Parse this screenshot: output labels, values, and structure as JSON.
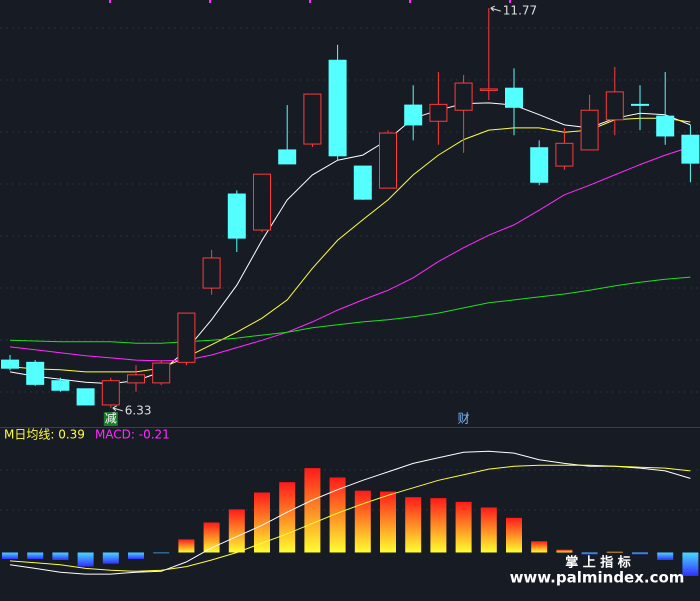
{
  "chart_data": [
    {
      "type": "candlestick",
      "up_color": "#ff3b3b",
      "down_color": "#54ffff",
      "open": [
        6.98,
        6.95,
        6.7,
        6.59,
        6.37,
        6.67,
        6.67,
        6.95,
        7.96,
        9.24,
        8.75,
        9.84,
        9.92,
        11.06,
        9.62,
        9.32,
        10.45,
        10.23,
        10.38,
        10.65,
        10.68,
        9.87,
        9.62,
        9.84,
        10.25,
        10.46,
        10.3,
        10.04
      ],
      "high": [
        7.05,
        6.98,
        6.74,
        6.59,
        6.74,
        6.91,
        6.98,
        7.62,
        8.48,
        9.29,
        9.51,
        10.45,
        10.6,
        11.27,
        9.62,
        10.11,
        10.72,
        10.9,
        10.86,
        11.77,
        10.95,
        9.97,
        10.14,
        10.59,
        10.97,
        10.72,
        10.9,
        10.18
      ],
      "low": [
        6.84,
        6.63,
        6.55,
        6.37,
        6.33,
        6.55,
        6.64,
        6.91,
        7.87,
        8.45,
        8.72,
        9.65,
        9.88,
        9.7,
        9.16,
        9.32,
        9.97,
        9.91,
        9.8,
        10.52,
        10.04,
        9.36,
        9.57,
        9.84,
        10.04,
        10.11,
        9.91,
        9.4
      ],
      "close": [
        6.87,
        6.65,
        6.57,
        6.37,
        6.7,
        6.78,
        6.94,
        7.62,
        8.37,
        8.64,
        9.51,
        9.65,
        10.6,
        9.76,
        9.17,
        10.07,
        10.18,
        10.46,
        10.75,
        10.67,
        10.42,
        9.4,
        9.93,
        10.38,
        10.63,
        10.45,
        10.03,
        9.66
      ],
      "lines": [
        {
          "color": "#ffffff",
          "values": [
            6.82,
            6.76,
            6.72,
            6.68,
            6.66,
            6.7,
            6.82,
            7.12,
            7.53,
            8.0,
            8.61,
            9.16,
            9.5,
            9.7,
            9.77,
            9.98,
            10.27,
            10.38,
            10.47,
            10.48,
            10.45,
            10.32,
            10.18,
            10.14,
            10.27,
            10.34,
            10.32,
            10.18
          ]
        },
        {
          "color": "#ffff3c",
          "values": [
            6.89,
            6.86,
            6.85,
            6.82,
            6.82,
            6.82,
            6.87,
            7.02,
            7.19,
            7.36,
            7.55,
            7.8,
            8.23,
            8.61,
            8.89,
            9.16,
            9.5,
            9.77,
            9.98,
            10.11,
            10.14,
            10.14,
            10.08,
            10.11,
            10.25,
            10.27,
            10.27,
            10.22
          ]
        },
        {
          "color": "#ff2cff",
          "values": [
            7.16,
            7.12,
            7.08,
            7.04,
            7.01,
            6.98,
            6.97,
            6.98,
            7.05,
            7.15,
            7.25,
            7.36,
            7.5,
            7.66,
            7.8,
            7.93,
            8.1,
            8.32,
            8.51,
            8.68,
            8.82,
            9.02,
            9.23,
            9.36,
            9.5,
            9.64,
            9.77,
            9.88
          ]
        },
        {
          "color": "#22dd22",
          "values": [
            7.25,
            7.24,
            7.23,
            7.23,
            7.23,
            7.21,
            7.21,
            7.23,
            7.25,
            7.28,
            7.32,
            7.36,
            7.42,
            7.46,
            7.5,
            7.53,
            7.57,
            7.62,
            7.69,
            7.76,
            7.8,
            7.84,
            7.88,
            7.93,
            7.99,
            8.04,
            8.08,
            8.11
          ]
        }
      ],
      "annotations": [
        {
          "text": "11.77",
          "value": 11.77
        },
        {
          "text": "6.33",
          "value": 6.33
        }
      ],
      "markers": [
        {
          "text": "减",
          "color": "#ffffff",
          "background": "#1c7a2c"
        },
        {
          "text": "财",
          "color": "#7fb8ff"
        }
      ],
      "ylim": [
        6.07,
        11.88
      ]
    },
    {
      "type": "macd-bar",
      "legend": [
        {
          "text": "M日均线: 0.39",
          "color": "#ffff3c"
        },
        {
          "text": "MACD: -0.21",
          "color": "#ff2cff"
        }
      ],
      "values": [
        -0.07,
        -0.07,
        -0.08,
        -0.15,
        -0.12,
        -0.07,
        -0.01,
        0.14,
        0.32,
        0.46,
        0.64,
        0.75,
        0.9,
        0.8,
        0.66,
        0.65,
        0.59,
        0.58,
        0.54,
        0.48,
        0.37,
        0.12,
        0.03,
        -0.02,
        0.01,
        -0.02,
        -0.08,
        -0.25
      ],
      "lines": [
        {
          "color": "#ffffff",
          "values": [
            -0.13,
            -0.17,
            -0.21,
            -0.23,
            -0.23,
            -0.21,
            -0.2,
            -0.1,
            0.05,
            0.17,
            0.29,
            0.43,
            0.56,
            0.67,
            0.77,
            0.86,
            0.95,
            1.01,
            1.07,
            1.08,
            1.06,
            0.99,
            0.95,
            0.92,
            0.92,
            0.9,
            0.87,
            0.79
          ]
        },
        {
          "color": "#ffff3c",
          "values": [
            -0.09,
            -0.11,
            -0.13,
            -0.17,
            -0.19,
            -0.2,
            -0.19,
            -0.15,
            -0.08,
            0.0,
            0.1,
            0.2,
            0.31,
            0.42,
            0.52,
            0.61,
            0.69,
            0.77,
            0.83,
            0.89,
            0.92,
            0.93,
            0.93,
            0.93,
            0.92,
            0.91,
            0.9,
            0.87
          ]
        }
      ],
      "ylim": [
        -0.4,
        1.2
      ]
    }
  ],
  "watermark": {
    "name": "掌 上 指 标",
    "url": "www.palmindex.com"
  }
}
